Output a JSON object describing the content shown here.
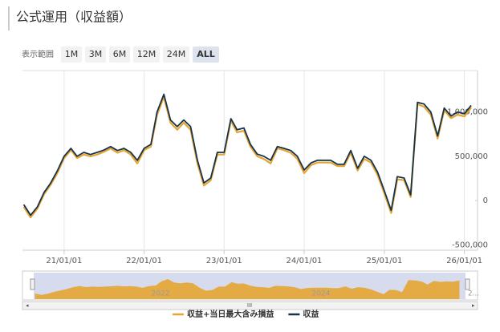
{
  "chart_data": {
    "type": "line",
    "title": "公式運用（収益額）",
    "range_selector": {
      "label": "表示範囲",
      "buttons": [
        "1M",
        "3M",
        "6M",
        "12M",
        "24M",
        "ALL"
      ],
      "selected": "ALL"
    },
    "x": [
      "2020-07-01",
      "2020-08-01",
      "2020-09-01",
      "2020-10-01",
      "2020-11-01",
      "2020-12-01",
      "2021-01-01",
      "2021-02-01",
      "2021-03-01",
      "2021-04-01",
      "2021-05-01",
      "2021-06-01",
      "2021-07-01",
      "2021-08-01",
      "2021-09-01",
      "2021-10-01",
      "2021-11-01",
      "2021-12-01",
      "2022-01-01",
      "2022-02-01",
      "2022-03-01",
      "2022-04-01",
      "2022-05-01",
      "2022-06-01",
      "2022-07-01",
      "2022-08-01",
      "2022-09-01",
      "2022-10-01",
      "2022-11-01",
      "2022-12-01",
      "2023-01-01",
      "2023-02-01",
      "2023-03-01",
      "2023-04-01",
      "2023-05-01",
      "2023-06-01",
      "2023-07-01",
      "2023-08-01",
      "2023-09-01",
      "2023-10-01",
      "2023-11-01",
      "2023-12-01",
      "2024-01-01",
      "2024-02-01",
      "2024-03-01",
      "2024-04-01",
      "2024-05-01",
      "2024-06-01",
      "2024-07-01",
      "2024-08-01",
      "2024-09-01",
      "2024-10-01",
      "2024-11-01",
      "2024-12-01",
      "2025-01-01",
      "2025-02-01",
      "2025-03-01",
      "2025-04-01",
      "2025-05-01",
      "2025-06-01",
      "2025-07-01",
      "2025-08-01",
      "2025-09-01",
      "2025-10-01",
      "2025-11-01",
      "2025-12-01",
      "2026-01-01",
      "2026-02-01"
    ],
    "series": [
      {
        "name": "収益+当日最大含み損益",
        "color": "#e6a532",
        "values": [
          -70000,
          -190000,
          -90000,
          70000,
          180000,
          310000,
          480000,
          570000,
          480000,
          520000,
          500000,
          520000,
          550000,
          590000,
          540000,
          570000,
          520000,
          420000,
          570000,
          610000,
          970000,
          1170000,
          880000,
          800000,
          880000,
          800000,
          420000,
          170000,
          230000,
          520000,
          520000,
          900000,
          770000,
          790000,
          610000,
          500000,
          470000,
          420000,
          590000,
          570000,
          540000,
          470000,
          310000,
          400000,
          430000,
          430000,
          430000,
          390000,
          390000,
          540000,
          340000,
          470000,
          430000,
          290000,
          80000,
          -140000,
          240000,
          230000,
          40000,
          1090000,
          1060000,
          970000,
          700000,
          1020000,
          930000,
          970000,
          950000,
          1050000
        ]
      },
      {
        "name": "収益",
        "color": "#16334a",
        "values": [
          -45000,
          -165000,
          -70000,
          90000,
          200000,
          335000,
          500000,
          590000,
          500000,
          545000,
          520000,
          545000,
          570000,
          610000,
          565000,
          590000,
          545000,
          455000,
          590000,
          635000,
          1000000,
          1200000,
          910000,
          835000,
          910000,
          835000,
          455000,
          200000,
          255000,
          545000,
          545000,
          925000,
          800000,
          820000,
          635000,
          525000,
          500000,
          455000,
          610000,
          590000,
          565000,
          500000,
          345000,
          425000,
          455000,
          455000,
          455000,
          410000,
          410000,
          565000,
          365000,
          500000,
          455000,
          320000,
          110000,
          -110000,
          270000,
          255000,
          65000,
          1110000,
          1090000,
          1000000,
          730000,
          1045000,
          955000,
          1000000,
          980000,
          1075000
        ]
      }
    ],
    "xlim": [
      "2020-06-25",
      "2026-03-02"
    ],
    "xticks": [
      {
        "value": "2021-01-01",
        "label": "21/01/01"
      },
      {
        "value": "2022-01-01",
        "label": "22/01/01"
      },
      {
        "value": "2023-01-01",
        "label": "23/01/01"
      },
      {
        "value": "2024-01-01",
        "label": "24/01/01"
      },
      {
        "value": "2025-01-01",
        "label": "25/01/01"
      },
      {
        "value": "2026-01-01",
        "label": "26/01/01"
      }
    ],
    "ylim": [
      -560000,
      1450000
    ],
    "yticks": [
      {
        "value": -500000,
        "label": "-500,000"
      },
      0,
      {
        "value": 500000,
        "label": "500,000"
      },
      {
        "value": 1000000,
        "label": "1,000,000"
      }
    ],
    "navigator_labels": [
      "2022",
      "2024",
      "2..."
    ],
    "scrollbar_label": "III",
    "grid": "x",
    "legend": "bottom"
  }
}
